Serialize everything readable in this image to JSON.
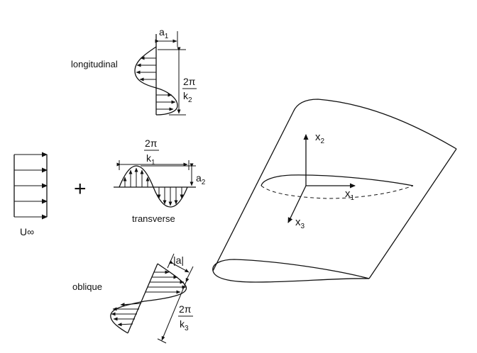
{
  "labels": {
    "longitudinal": "longitudinal",
    "transverse": "transverse",
    "oblique": "oblique",
    "freestream": "U∞",
    "plus": "+"
  },
  "dimensions": {
    "a1": {
      "base": "a",
      "sub": "1"
    },
    "a2": {
      "base": "a",
      "sub": "2"
    },
    "abs_a": "|a|",
    "wavelength_k1": {
      "num": "2π",
      "base": "k",
      "sub": "1"
    },
    "wavelength_k2": {
      "num": "2π",
      "base": "k",
      "sub": "2"
    },
    "wavelength_k3": {
      "num": "2π",
      "base": "k",
      "sub": "3"
    }
  },
  "axes": {
    "x1": {
      "base": "x",
      "sub": "1"
    },
    "x2": {
      "base": "x",
      "sub": "2"
    },
    "x3": {
      "base": "x",
      "sub": "3"
    }
  }
}
